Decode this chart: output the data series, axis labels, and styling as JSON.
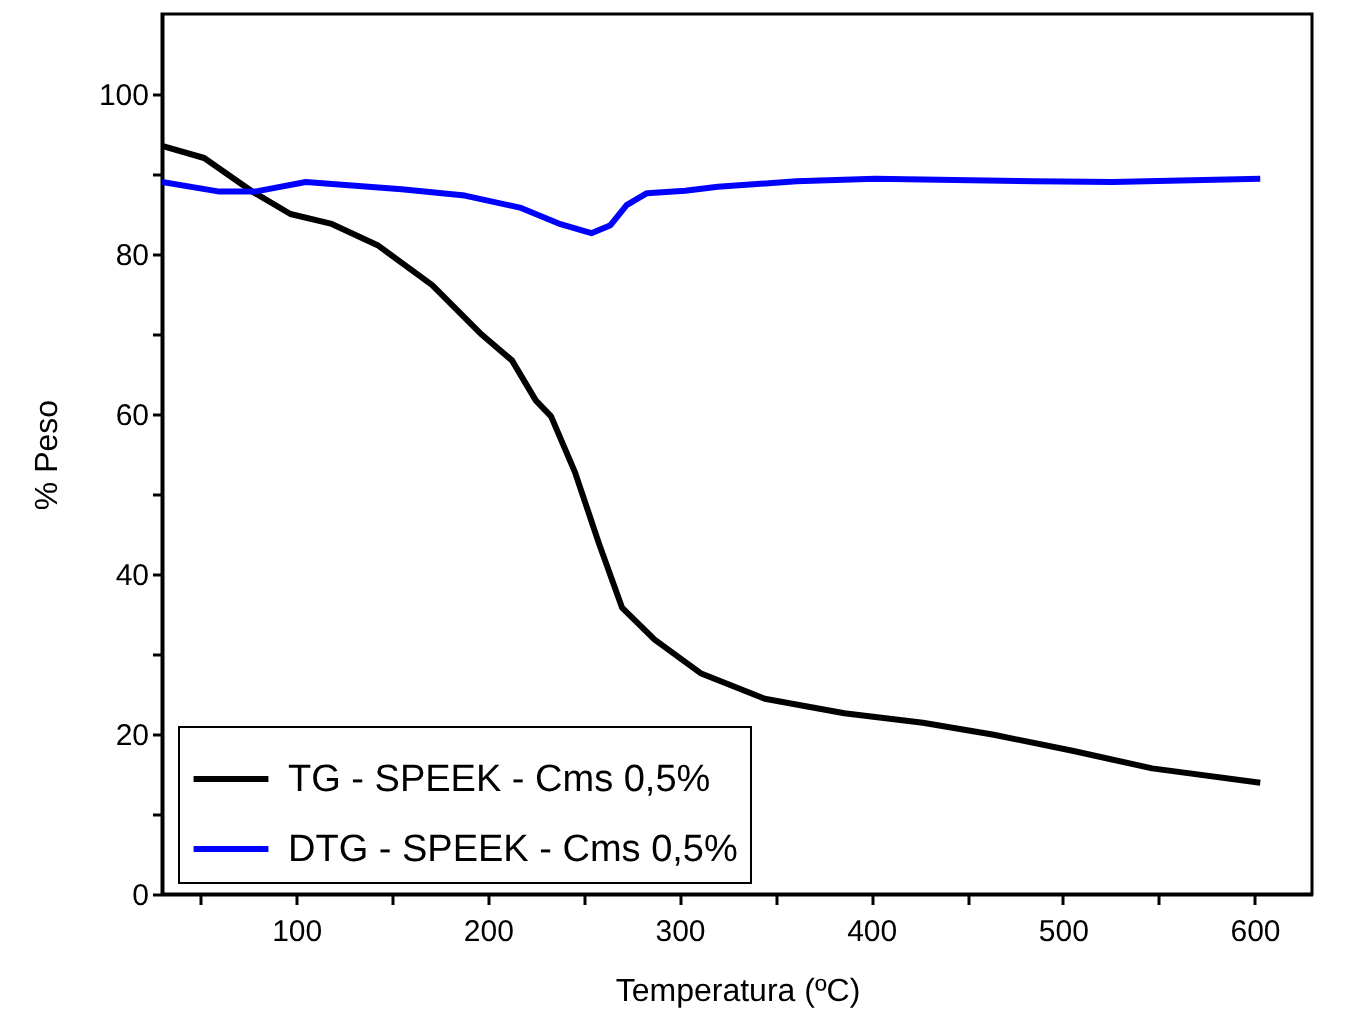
{
  "chart_data": {
    "type": "line",
    "xlabel": "Temperatura (ºC)",
    "ylabel": "% Peso",
    "xlim": [
      30,
      630
    ],
    "ylim": [
      0,
      110
    ],
    "xticks": [
      {
        "value": 50,
        "label": null
      },
      100,
      {
        "value": 150,
        "label": null
      },
      200,
      {
        "value": 250,
        "label": null
      },
      300,
      {
        "value": 350,
        "label": null
      },
      400,
      {
        "value": 450,
        "label": null
      },
      500,
      {
        "value": 550,
        "label": null
      },
      600
    ],
    "yticks": [
      0,
      {
        "value": 10,
        "label": null
      },
      20,
      {
        "value": 30,
        "label": null
      },
      40,
      {
        "value": 50,
        "label": null
      },
      60,
      {
        "value": 70,
        "label": null
      },
      80,
      {
        "value": 90,
        "label": null
      },
      100
    ],
    "grid": false,
    "legend": "bottom left",
    "line_style": "solid",
    "marker": "none",
    "series": [
      {
        "name": "TG - SPEEK - Cms 0,5%",
        "color": "#000000",
        "x": [
          30,
          52,
          76.5,
          97,
          118,
          142.5,
          171,
          196,
          212.6,
          225,
          233,
          245.5,
          258,
          270,
          287,
          311,
          344.5,
          386,
          427,
          464,
          505,
          546.6,
          603
        ],
        "values": [
          93.5,
          92,
          87.9,
          85,
          83.8,
          81.1,
          76.1,
          70.1,
          66.7,
          61.7,
          59.7,
          52.7,
          43.8,
          35.8,
          31.8,
          27.6,
          24.4,
          22.6,
          21.4,
          19.9,
          17.9,
          15.7,
          13.9
        ]
      },
      {
        "name": "DTG - SPEEK - Cms 0,5%",
        "color": "#0000ff",
        "x": [
          30,
          60,
          78.5,
          105,
          155,
          188,
          216.7,
          237,
          254,
          264,
          272.4,
          283,
          303,
          320,
          361,
          402,
          485,
          526,
          603
        ],
        "values": [
          89,
          87.8,
          87.8,
          89,
          88.1,
          87.3,
          85.8,
          83.8,
          82.6,
          83.6,
          86.1,
          87.6,
          87.9,
          88.4,
          89.1,
          89.4,
          89.1,
          89,
          89.4
        ]
      }
    ]
  }
}
